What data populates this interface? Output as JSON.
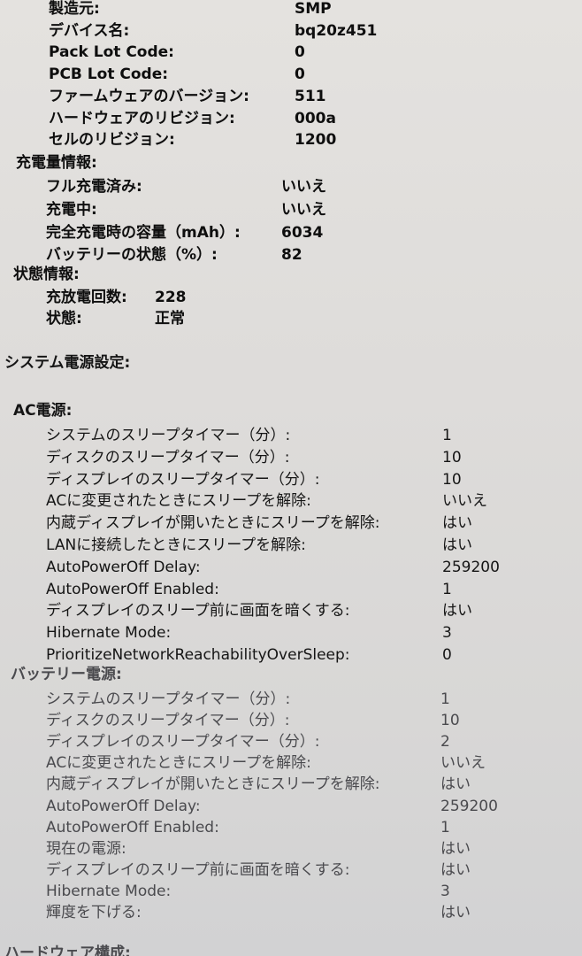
{
  "device": {
    "rows": [
      {
        "label": "製造元:",
        "value": "SMP"
      },
      {
        "label": "デバイス名:",
        "value": "bq20z451"
      },
      {
        "label": "Pack Lot Code:",
        "value": "0"
      },
      {
        "label": "PCB Lot Code:",
        "value": "0"
      },
      {
        "label": "ファームウェアのバージョン:",
        "value": "511"
      },
      {
        "label": "ハードウェアのリビジョン:",
        "value": "000a"
      },
      {
        "label": "セルのリビジョン:",
        "value": "1200"
      }
    ]
  },
  "charge": {
    "title": "充電量情報:",
    "rows": [
      {
        "label": "フル充電済み:",
        "value": "いいえ"
      },
      {
        "label": "充電中:",
        "value": "いいえ"
      },
      {
        "label": "完全充電時の容量（mAh）:",
        "value": "6034"
      },
      {
        "label": "バッテリーの状態（%）:",
        "value": "82"
      }
    ]
  },
  "health": {
    "title": "状態情報:",
    "rows": [
      {
        "label": "充放電回数:",
        "value": "228"
      },
      {
        "label": "状態:",
        "value": "正常"
      }
    ]
  },
  "power_settings": {
    "title": "システム電源設定:"
  },
  "ac_power": {
    "title": "AC電源:",
    "rows": [
      {
        "label": "システムのスリープタイマー（分）:",
        "value": "1"
      },
      {
        "label": "ディスクのスリープタイマー（分）:",
        "value": "10"
      },
      {
        "label": "ディスプレイのスリープタイマー（分）:",
        "value": "10"
      },
      {
        "label": "ACに変更されたときにスリープを解除:",
        "value": "いいえ"
      },
      {
        "label": "内蔵ディスプレイが開いたときにスリープを解除:",
        "value": "はい"
      },
      {
        "label": "LANに接続したときにスリープを解除:",
        "value": "はい"
      },
      {
        "label": "AutoPowerOff Delay:",
        "value": "259200"
      },
      {
        "label": "AutoPowerOff Enabled:",
        "value": "1"
      },
      {
        "label": "ディスプレイのスリープ前に画面を暗くする:",
        "value": "はい"
      },
      {
        "label": "Hibernate Mode:",
        "value": "3"
      },
      {
        "label": "PrioritizeNetworkReachabilityOverSleep:",
        "value": "0"
      }
    ]
  },
  "battery_power": {
    "title": "バッテリー電源:",
    "rows": [
      {
        "label": "システムのスリープタイマー（分）:",
        "value": "1"
      },
      {
        "label": "ディスクのスリープタイマー（分）:",
        "value": "10"
      },
      {
        "label": "ディスプレイのスリープタイマー（分）:",
        "value": "2"
      },
      {
        "label": "ACに変更されたときにスリープを解除:",
        "value": "いいえ"
      },
      {
        "label": "内蔵ディスプレイが開いたときにスリープを解除:",
        "value": "はい"
      },
      {
        "label": "AutoPowerOff Delay:",
        "value": "259200"
      },
      {
        "label": "AutoPowerOff Enabled:",
        "value": "1"
      },
      {
        "label": "現在の電源:",
        "value": "はい"
      },
      {
        "label": "ディスプレイのスリープ前に画面を暗くする:",
        "value": "はい"
      },
      {
        "label": "Hibernate Mode:",
        "value": "3"
      },
      {
        "label": "輝度を下げる:",
        "value": "はい"
      }
    ]
  },
  "hardware_config": {
    "title": "ハードウェア構成:"
  }
}
